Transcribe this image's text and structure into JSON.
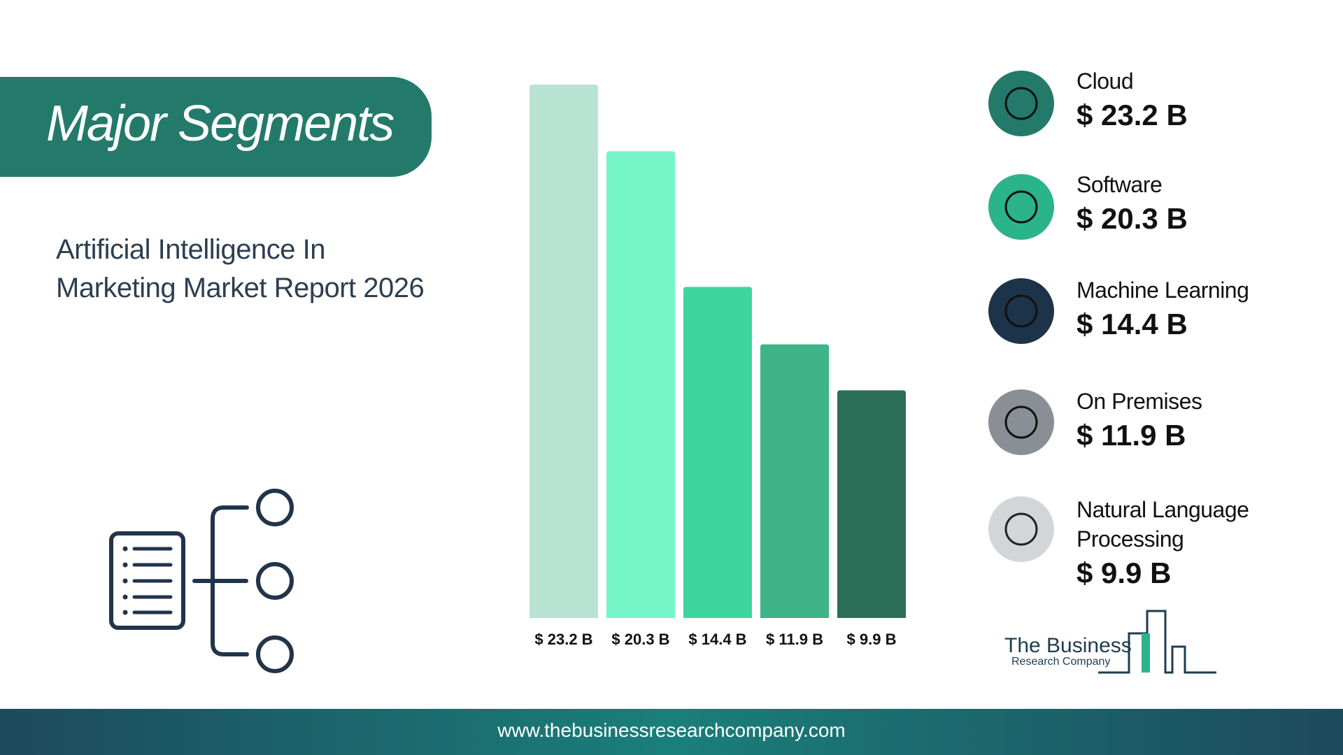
{
  "chart_data": {
    "type": "bar",
    "title": "Major Segments",
    "subtitle": [
      "Artificial Intelligence In",
      "Marketing Market Report 2026"
    ],
    "categories": [
      "Cloud",
      "Software",
      "Machine Learning",
      "On Premises",
      "Natural Language Processing"
    ],
    "values": [
      23.2,
      20.3,
      14.4,
      11.9,
      9.9
    ],
    "value_labels": [
      "$ 23.2 B",
      "$ 20.3 B",
      "$ 14.4 B",
      "$ 11.9 B",
      "$ 9.9 B"
    ],
    "colors": [
      "#b8e3d3",
      "#76f5c8",
      "#3ed69e",
      "#3db387",
      "#2d6e58"
    ]
  },
  "footer": {
    "url": "www.thebusinessresearchcompany.com"
  },
  "logo": {
    "line1": "The Business",
    "line2": "Research Company"
  }
}
